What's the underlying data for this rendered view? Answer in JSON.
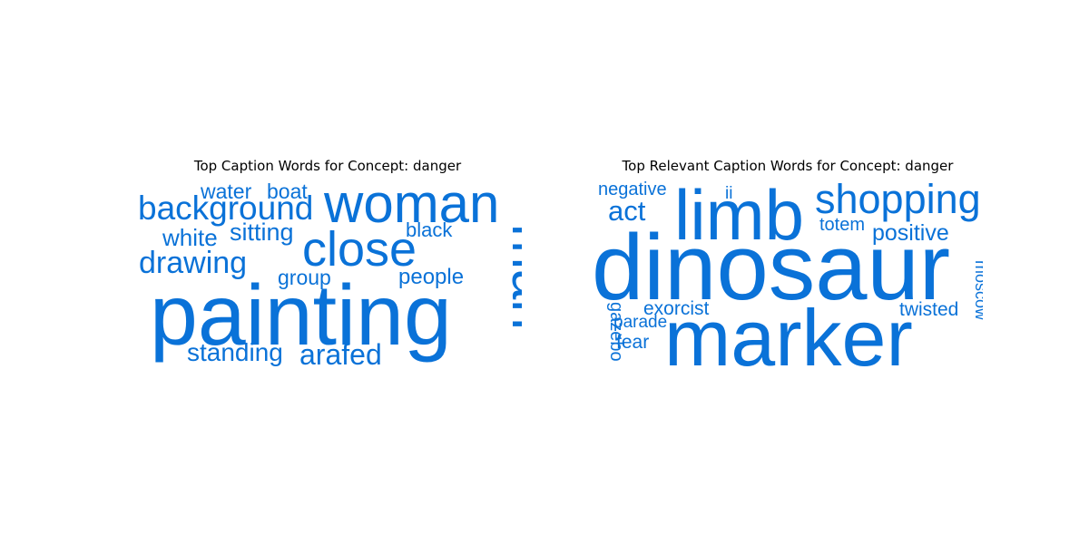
{
  "chart_data": [
    {
      "type": "wordcloud",
      "title": "Top Caption Words for Concept: danger",
      "color": "#0a72d8",
      "words": [
        {
          "text": "painting",
          "weight": 100
        },
        {
          "text": "woman",
          "weight": 72
        },
        {
          "text": "man",
          "weight": 72
        },
        {
          "text": "close",
          "weight": 62
        },
        {
          "text": "background",
          "weight": 46
        },
        {
          "text": "drawing",
          "weight": 42
        },
        {
          "text": "arafed",
          "weight": 40
        },
        {
          "text": "standing",
          "weight": 33
        },
        {
          "text": "sitting",
          "weight": 32
        },
        {
          "text": "white",
          "weight": 31
        },
        {
          "text": "water",
          "weight": 29
        },
        {
          "text": "boat",
          "weight": 29
        },
        {
          "text": "people",
          "weight": 29
        },
        {
          "text": "group",
          "weight": 28
        },
        {
          "text": "black",
          "weight": 27
        }
      ]
    },
    {
      "type": "wordcloud",
      "title": "Top Relevant Caption Words for Concept: danger",
      "color": "#0a72d8",
      "words": [
        {
          "text": "dinosaur",
          "weight": 100
        },
        {
          "text": "marker",
          "weight": 100
        },
        {
          "text": "limb",
          "weight": 87
        },
        {
          "text": "shopping",
          "weight": 48
        },
        {
          "text": "act",
          "weight": 36
        },
        {
          "text": "positive",
          "weight": 30
        },
        {
          "text": "negative",
          "weight": 26
        },
        {
          "text": "exorcist",
          "weight": 26
        },
        {
          "text": "twisted",
          "weight": 26
        },
        {
          "text": "fear",
          "weight": 26
        },
        {
          "text": "totem",
          "weight": 24
        },
        {
          "text": "parade",
          "weight": 23
        },
        {
          "text": "gazebo",
          "weight": 23
        },
        {
          "text": "moscow",
          "weight": 21
        },
        {
          "text": "ii",
          "weight": 20
        }
      ]
    }
  ]
}
